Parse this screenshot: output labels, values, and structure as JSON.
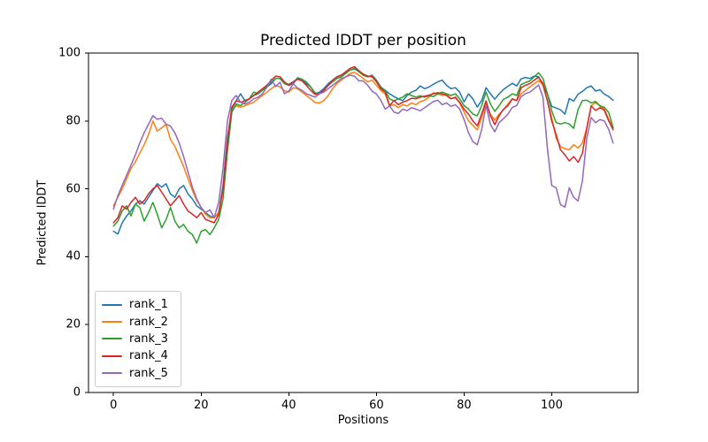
{
  "figure": {
    "title": "Predicted lDDT per position",
    "xlabel": "Positions",
    "ylabel": "Predicted lDDT"
  },
  "chart_data": {
    "type": "line",
    "title": "Predicted lDDT per position",
    "xlabel": "Positions",
    "ylabel": "Predicted lDDT",
    "x": "positions 0 to 114 (index of each value)",
    "xlim": [
      -5.7,
      119.7
    ],
    "ylim": [
      0,
      100
    ],
    "x_ticks": [
      0,
      20,
      40,
      60,
      80,
      100
    ],
    "y_ticks": [
      0,
      20,
      40,
      60,
      80,
      100
    ],
    "grid": false,
    "legend_position": "lower left",
    "series": [
      {
        "name": "rank_1",
        "color": "#1f77b4",
        "values": [
          47.5,
          46.7,
          50,
          52,
          53.5,
          55.5,
          56.5,
          55.5,
          57.5,
          59.5,
          61.5,
          60.5,
          61.5,
          58.5,
          57.5,
          60,
          61,
          58.5,
          57,
          55,
          54,
          53,
          52,
          51.5,
          53,
          61,
          75,
          83.5,
          86,
          88,
          86,
          86.5,
          87.5,
          88,
          89,
          90,
          91,
          92.5,
          92.5,
          91,
          90.5,
          91,
          92.7,
          92.3,
          91,
          90,
          88,
          88.5,
          89.5,
          91,
          92,
          93,
          93.5,
          94,
          95,
          95.3,
          94.5,
          93.5,
          93,
          93.5,
          92,
          90,
          89,
          88,
          87.2,
          86.5,
          86,
          87.5,
          88.5,
          89,
          90.3,
          89.5,
          90,
          90.8,
          91.5,
          92,
          90.5,
          89.5,
          89.8,
          88.5,
          85.6,
          88,
          86.5,
          84.1,
          86,
          89.8,
          88,
          86.4,
          88,
          89.3,
          90.2,
          91.1,
          90.3,
          92.4,
          92.8,
          92.5,
          93.2,
          93,
          90.5,
          88,
          84.3,
          83.8,
          83.3,
          82,
          86.6,
          85.8,
          87.9,
          88.7,
          89.8,
          90.3,
          88.8,
          89.2,
          87.9,
          87.2,
          86.1
        ]
      },
      {
        "name": "rank_2",
        "color": "#ff7f0e",
        "values": [
          55,
          57.5,
          60,
          63,
          66,
          68,
          70.5,
          73,
          76,
          80,
          77,
          78,
          79,
          74.5,
          72.5,
          69.5,
          66.5,
          63,
          59.5,
          56.5,
          54.5,
          52.5,
          51.5,
          51.5,
          53,
          60,
          73.5,
          83,
          84.5,
          84,
          84.5,
          85,
          85.5,
          86.5,
          87.5,
          88.5,
          89.5,
          90.5,
          90,
          88.9,
          88.5,
          89.8,
          89.5,
          88.5,
          87.5,
          86.5,
          85.4,
          85.3,
          86,
          87.5,
          89.5,
          91,
          92,
          93,
          94,
          94.3,
          93.5,
          92.5,
          91.5,
          92,
          90.5,
          89,
          87.9,
          84.4,
          84.8,
          83.9,
          84.8,
          84.4,
          85.3,
          84.8,
          85.7,
          86.1,
          87,
          88.3,
          87.9,
          87.5,
          87.9,
          86.6,
          86.8,
          85.3,
          82.6,
          80,
          78.7,
          77.4,
          80.9,
          85.1,
          82,
          80.2,
          82,
          83.3,
          85,
          86.5,
          86,
          88,
          89,
          90,
          91,
          91.9,
          90.5,
          86,
          81,
          74.9,
          72.5,
          71.8,
          71.5,
          73,
          72,
          73.5,
          78,
          84.5,
          85.4,
          84.4,
          83.5,
          80.5,
          77.8
        ]
      },
      {
        "name": "rank_3",
        "color": "#2ca02c",
        "values": [
          49,
          50.5,
          53.5,
          55,
          52,
          55.5,
          54.5,
          50.5,
          53,
          56,
          52.5,
          48.5,
          51,
          54.5,
          50.5,
          48.5,
          49.5,
          47.5,
          46.5,
          44,
          47.5,
          48,
          46.5,
          48.5,
          51,
          57,
          71,
          82.5,
          85,
          84.5,
          85.5,
          86.5,
          88.5,
          88,
          89,
          90.5,
          91.5,
          92.5,
          92.5,
          91,
          90.8,
          91.5,
          92.5,
          92.3,
          91.5,
          90,
          88.3,
          88,
          89,
          90.5,
          91.5,
          92.5,
          93,
          94,
          95,
          95.5,
          94.5,
          93.5,
          93,
          93.2,
          91.8,
          89.8,
          89,
          86.5,
          85.9,
          86.5,
          87,
          88,
          87.5,
          87,
          87.4,
          87,
          87.4,
          87.2,
          88,
          88.5,
          88,
          87.5,
          88,
          86.5,
          84.5,
          83.5,
          82,
          81.5,
          84.5,
          88.5,
          85,
          82.8,
          84.5,
          86.4,
          87,
          88,
          87.5,
          90.7,
          91.3,
          91.8,
          93,
          94.2,
          92.5,
          88,
          83,
          79.5,
          79.1,
          79.5,
          79.1,
          77.8,
          83.4,
          86,
          86.1,
          85.3,
          85.7,
          84.5,
          84,
          82.5,
          78
        ]
      },
      {
        "name": "rank_4",
        "color": "#d62728",
        "values": [
          50,
          51.5,
          55,
          54,
          56,
          57.5,
          55.5,
          56.5,
          58.5,
          60,
          61,
          59,
          57,
          55,
          56.5,
          58,
          55.5,
          53.5,
          52.5,
          51.5,
          53,
          51,
          50.5,
          50,
          52.5,
          60,
          74,
          84,
          86,
          85.5,
          86,
          86.5,
          87.5,
          88.5,
          89.5,
          90.5,
          92,
          93.2,
          93,
          91.5,
          90.5,
          91.5,
          92.3,
          91.8,
          90.5,
          89,
          87.8,
          88,
          89,
          90.5,
          92,
          93,
          93.5,
          94.5,
          95.5,
          96,
          94.8,
          93.8,
          93.2,
          93,
          91.5,
          89.5,
          88.5,
          84.5,
          86,
          84.8,
          85.5,
          86,
          86.7,
          86.5,
          87,
          87.3,
          87.6,
          88,
          88.3,
          88,
          87.5,
          86.5,
          87,
          85.5,
          83.5,
          82,
          80,
          78.6,
          82,
          85.9,
          81.5,
          78.9,
          81.5,
          83.5,
          84.5,
          86.5,
          86,
          89.8,
          90.5,
          91,
          92,
          92.9,
          91,
          86,
          80,
          76,
          71.5,
          70,
          68.2,
          69.5,
          67.8,
          70.5,
          78,
          84.4,
          83.1,
          83.9,
          83.1,
          80,
          77.4
        ]
      },
      {
        "name": "rank_5",
        "color": "#9467bd",
        "values": [
          54,
          58,
          61,
          64,
          67,
          70,
          73.5,
          76.5,
          79,
          81.5,
          80.5,
          80.8,
          79,
          78.5,
          76.5,
          73.5,
          69.5,
          65,
          60.5,
          57,
          54.5,
          53,
          53.8,
          51.5,
          56,
          66,
          80,
          86,
          87.5,
          85.5,
          85,
          85.5,
          86.5,
          87,
          88,
          90,
          92.3,
          90.1,
          91.4,
          88,
          88.8,
          91,
          89.7,
          89,
          88,
          87.5,
          87,
          88,
          88.5,
          89.5,
          90.5,
          91.5,
          92.5,
          93,
          93.5,
          93.2,
          91.8,
          91.8,
          90.5,
          88.8,
          87.9,
          86.1,
          83.5,
          84.4,
          82.6,
          82.2,
          83.5,
          83,
          83.9,
          83.5,
          83,
          83.9,
          84.8,
          85.7,
          86.1,
          84.8,
          85.3,
          84.3,
          84.8,
          83.5,
          80.4,
          76.5,
          73.9,
          73,
          77.4,
          84.6,
          79,
          76.8,
          79.5,
          80.7,
          82,
          84,
          84.5,
          87.2,
          88,
          88.5,
          89.5,
          90.6,
          87,
          72,
          61,
          60.3,
          55.4,
          54.6,
          60.3,
          57.5,
          56.4,
          62.4,
          75,
          81,
          79.5,
          80.4,
          80,
          77.5,
          73.5
        ]
      }
    ]
  }
}
